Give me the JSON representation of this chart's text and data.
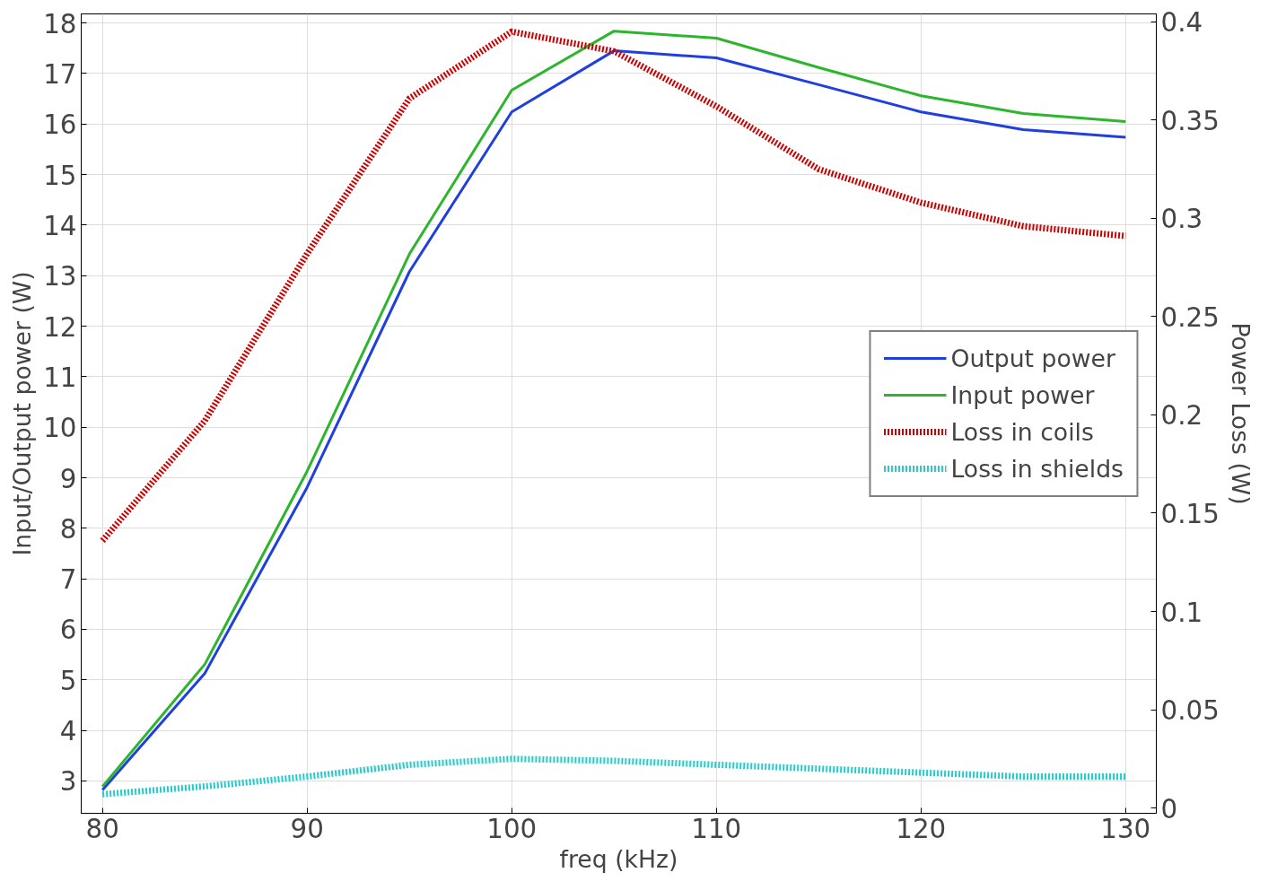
{
  "chart_data": {
    "type": "line",
    "xlabel": "freq (kHz)",
    "ylabel": "Input/Output power (W)",
    "y2label": "Power Loss (W)",
    "x": [
      80,
      85,
      90,
      95,
      100,
      105,
      110,
      115,
      120,
      125,
      130
    ],
    "xlim": [
      78.96,
      131.5
    ],
    "xticks": [
      80,
      90,
      100,
      110,
      120,
      130
    ],
    "ylim": [
      2.36,
      18.18
    ],
    "yticks": [
      3,
      4,
      5,
      6,
      7,
      8,
      9,
      10,
      11,
      12,
      13,
      14,
      15,
      16,
      17,
      18
    ],
    "y2lim": [
      -0.0027,
      0.404
    ],
    "y2ticks": [
      0,
      0.05,
      0.1,
      0.15,
      0.2,
      0.25,
      0.3,
      0.35,
      0.4
    ],
    "grid": true,
    "legend": "right",
    "marker": "none",
    "series": [
      {
        "name": "Output power",
        "color": "#1f3fe0",
        "line_style": "solid",
        "values": [
          2.82,
          5.13,
          8.81,
          13.08,
          16.24,
          17.45,
          17.31,
          16.78,
          16.24,
          15.89,
          15.74
        ]
      },
      {
        "name": "Input power",
        "color": "#2db52d",
        "line_style": "solid",
        "values": [
          2.89,
          5.31,
          9.13,
          13.43,
          16.67,
          17.84,
          17.7,
          17.12,
          16.56,
          16.21,
          16.05
        ]
      },
      {
        "name": "Loss in coils",
        "color": "#cc0000",
        "line_style": "dotted",
        "axis": "y2",
        "values": [
          0.136,
          0.197,
          0.282,
          0.361,
          0.395,
          0.385,
          0.357,
          0.325,
          0.308,
          0.296,
          0.291
        ]
      },
      {
        "name": "Loss in shields",
        "color": "#22cccc",
        "line_style": "dotted",
        "axis": "y2",
        "values": [
          0.007,
          0.011,
          0.016,
          0.022,
          0.025,
          0.024,
          0.022,
          0.02,
          0.018,
          0.016,
          0.016
        ]
      }
    ]
  }
}
